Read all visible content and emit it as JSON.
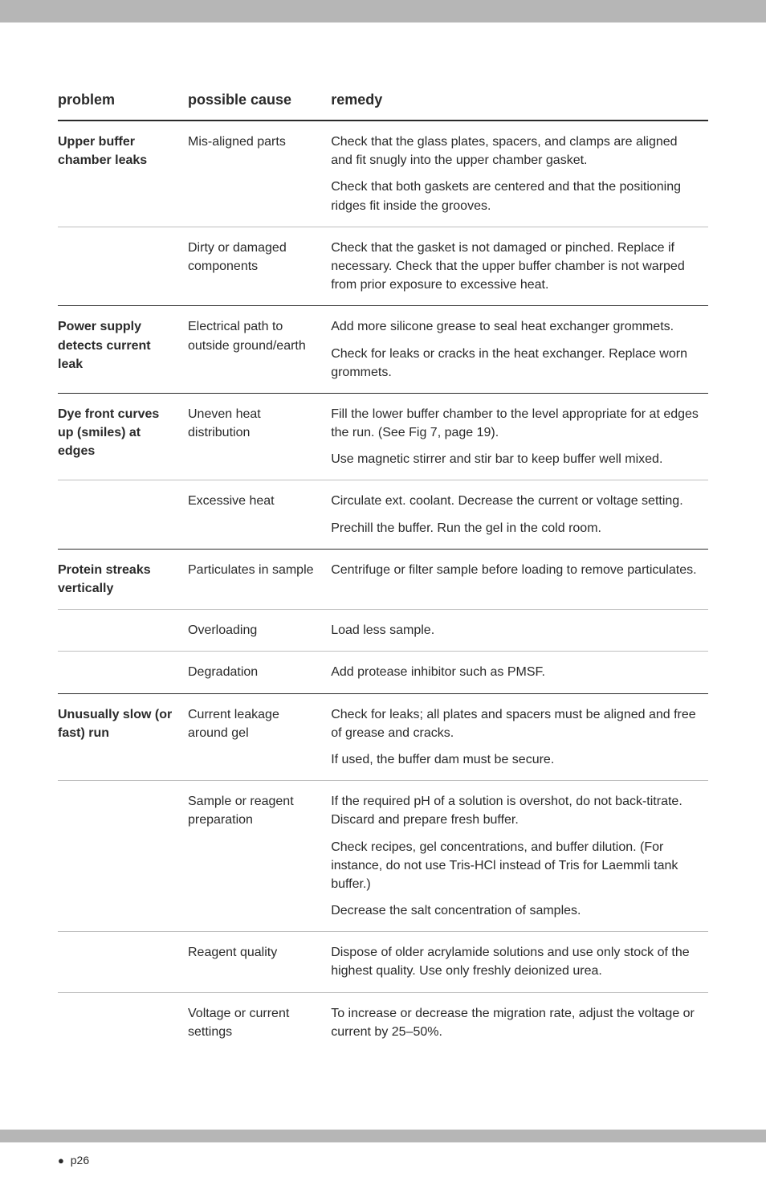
{
  "header": {
    "col1": "problem",
    "col2": "possible cause",
    "col3": "remedy"
  },
  "rows": [
    {
      "problem": "Upper buffer chamber leaks",
      "cause": "Mis-aligned parts",
      "remedy": [
        "Check that the glass plates, spacers, and clamps are aligned and fit snugly into the upper chamber gasket.",
        "Check that both gaskets are centered and that the positioning ridges fit inside the grooves."
      ],
      "border": "light"
    },
    {
      "problem": "",
      "cause": "Dirty or damaged components",
      "remedy": [
        "Check that the gasket is not damaged or pinched. Replace if necessary. Check that the upper buffer chamber is not warped from prior exposure to excessive heat."
      ],
      "border": "dark"
    },
    {
      "problem": "Power supply detects current leak",
      "cause": "Electrical path to outside ground/earth",
      "remedy": [
        "Add more silicone grease to seal heat exchanger grommets.",
        "Check for leaks or cracks in the heat exchanger. Replace worn grommets."
      ],
      "border": "dark"
    },
    {
      "problem": "Dye front curves up (smiles) at edges",
      "cause": "Uneven heat distribution",
      "remedy": [
        "Fill the lower buffer chamber to the level appropriate for at edges the run. (See Fig 7, page 19).",
        "Use magnetic stirrer and stir bar to keep buffer well mixed."
      ],
      "border": "light"
    },
    {
      "problem": "",
      "cause": "Excessive heat",
      "remedy": [
        "Circulate ext. coolant. Decrease the current or voltage setting.",
        "Prechill the buffer. Run the gel in the cold room."
      ],
      "border": "dark"
    },
    {
      "problem": "Protein streaks vertically",
      "cause": "Particulates in sample",
      "remedy": [
        "Centrifuge or filter sample before loading to remove particulates."
      ],
      "border": "light"
    },
    {
      "problem": "",
      "cause": "Overloading",
      "remedy": [
        "Load less sample."
      ],
      "border": "light"
    },
    {
      "problem": "",
      "cause": "Degradation",
      "remedy": [
        "Add protease inhibitor such as PMSF."
      ],
      "border": "dark"
    },
    {
      "problem": "Unusually slow (or fast) run",
      "cause": "Current leakage around gel",
      "remedy": [
        "Check for leaks; all plates and spacers must be aligned and free of grease and cracks.",
        "If used, the buffer dam must be secure."
      ],
      "border": "light"
    },
    {
      "problem": "",
      "cause": "Sample or reagent preparation",
      "remedy": [
        "If the required pH of a solution is overshot, do not back-titrate. Discard and prepare fresh buffer.",
        "Check recipes, gel concentrations, and buffer dilution. (For instance, do not use Tris-HCl instead of Tris for Laemmli tank buffer.)",
        "Decrease the salt concentration of samples."
      ],
      "border": "light"
    },
    {
      "problem": "",
      "cause": "Reagent quality",
      "remedy": [
        "Dispose of older acrylamide solutions and use only stock of the highest quality. Use only freshly deionized urea."
      ],
      "border": "light"
    },
    {
      "problem": "",
      "cause": "Voltage or current settings",
      "remedy": [
        "To increase or decrease the migration rate, adjust the voltage or current by 25–50%."
      ],
      "border": "none"
    }
  ],
  "footer": {
    "page_label": "p26"
  }
}
